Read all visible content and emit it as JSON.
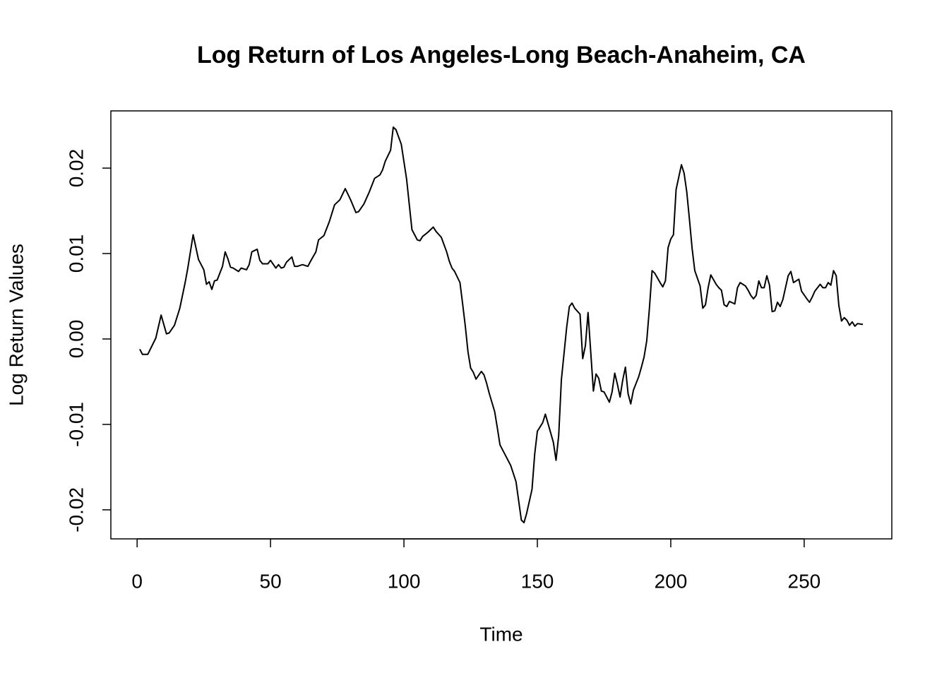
{
  "chart_data": {
    "type": "line",
    "title": "Log Return of Los Angeles-Long Beach-Anaheim, CA",
    "x_label": "Time",
    "y_label": "Log Return Values",
    "xlim": [
      -9.84,
      282.84
    ],
    "ylim": [
      -0.0234,
      0.0267
    ],
    "xticks": [
      0,
      50,
      100,
      150,
      200,
      250
    ],
    "yticks": [
      -0.02,
      -0.01,
      {
        "value": 0,
        "label": "0.00"
      },
      0.01,
      0.02
    ],
    "series": [
      {
        "color": "#000000",
        "x": [
          1,
          2,
          4,
          7,
          9,
          11,
          12,
          14,
          16,
          18,
          19,
          21,
          23,
          25,
          26,
          27,
          28,
          29,
          30,
          32,
          33,
          34,
          35,
          36,
          38,
          39,
          41,
          42,
          43,
          45,
          46,
          47,
          49,
          50,
          52,
          53,
          54,
          55,
          56,
          58,
          59,
          60,
          62,
          64,
          65,
          67,
          68,
          70,
          72,
          74,
          76,
          78,
          80,
          82,
          83,
          85,
          87,
          89,
          91,
          92,
          93,
          95,
          96,
          97,
          99,
          101,
          103,
          105,
          106,
          107,
          109,
          110,
          111,
          112,
          114,
          116,
          117,
          118,
          119,
          121,
          122,
          123,
          124,
          125,
          126,
          127,
          129,
          130,
          131,
          132,
          134,
          135,
          136,
          137,
          138,
          140,
          142,
          144,
          145,
          146,
          148,
          149,
          150,
          151,
          152,
          153,
          154,
          156,
          157,
          158,
          159,
          161,
          162,
          163,
          164,
          166,
          167,
          168,
          169,
          171,
          172,
          173,
          174,
          175,
          177,
          178,
          179,
          180,
          181,
          182,
          183,
          184,
          185,
          186,
          188,
          189,
          190,
          191,
          192,
          193,
          194,
          196,
          197,
          198,
          199,
          200,
          201,
          202,
          204,
          205,
          206,
          207,
          208,
          209,
          211,
          212,
          213,
          214,
          215,
          217,
          218,
          219,
          220,
          221,
          222,
          224,
          225,
          226,
          228,
          229,
          230,
          231,
          232,
          233,
          234,
          235,
          236,
          237,
          238,
          239,
          240,
          241,
          242,
          244,
          245,
          246,
          248,
          249,
          251,
          252,
          253,
          254,
          256,
          257,
          258,
          259,
          260,
          261,
          262,
          263,
          264,
          265,
          266,
          267,
          268,
          269,
          270,
          272
        ],
        "values": [
          -0.0012,
          -0.0018,
          -0.0018,
          0.0001,
          0.0028,
          0.0006,
          0.0007,
          0.0016,
          0.0036,
          0.0066,
          0.0083,
          0.0122,
          0.0093,
          0.0081,
          0.0064,
          0.0067,
          0.0058,
          0.0068,
          0.0069,
          0.0085,
          0.0102,
          0.0094,
          0.0084,
          0.0083,
          0.0079,
          0.0083,
          0.0081,
          0.0087,
          0.0102,
          0.0105,
          0.0092,
          0.0088,
          0.0088,
          0.0092,
          0.0083,
          0.0087,
          0.0083,
          0.0084,
          0.009,
          0.0096,
          0.0085,
          0.0085,
          0.0087,
          0.0085,
          0.0091,
          0.0102,
          0.0116,
          0.0121,
          0.0137,
          0.0157,
          0.0163,
          0.0176,
          0.0163,
          0.0148,
          0.0149,
          0.0158,
          0.0172,
          0.0188,
          0.0192,
          0.0198,
          0.0208,
          0.0221,
          0.0248,
          0.0245,
          0.0228,
          0.0187,
          0.0128,
          0.0116,
          0.0115,
          0.012,
          0.0125,
          0.0128,
          0.0131,
          0.0126,
          0.0119,
          0.0102,
          0.0091,
          0.0083,
          0.0079,
          0.0066,
          0.0041,
          0.0015,
          -0.0015,
          -0.0034,
          -0.0039,
          -0.0047,
          -0.0038,
          -0.0042,
          -0.0052,
          -0.0064,
          -0.0085,
          -0.0104,
          -0.0124,
          -0.013,
          -0.0136,
          -0.0148,
          -0.0167,
          -0.0212,
          -0.0215,
          -0.0204,
          -0.0176,
          -0.0135,
          -0.0108,
          -0.0103,
          -0.0098,
          -0.0088,
          -0.0099,
          -0.0121,
          -0.0142,
          -0.0113,
          -0.0048,
          0.0014,
          0.0038,
          0.0042,
          0.0036,
          0.0029,
          -0.0023,
          -0.0008,
          0.0031,
          -0.0061,
          -0.0041,
          -0.0046,
          -0.0061,
          -0.0062,
          -0.0074,
          -0.0062,
          -0.004,
          -0.0053,
          -0.0068,
          -0.0048,
          -0.0033,
          -0.0064,
          -0.0076,
          -0.006,
          -0.0044,
          -0.0033,
          -0.0021,
          -0.0002,
          0.0036,
          0.008,
          0.0077,
          0.0066,
          0.0061,
          0.0068,
          0.0107,
          0.0117,
          0.0122,
          0.0175,
          0.0204,
          0.0194,
          0.0172,
          0.014,
          0.0106,
          0.008,
          0.0062,
          0.0036,
          0.004,
          0.006,
          0.0075,
          0.0064,
          0.006,
          0.0057,
          0.004,
          0.0038,
          0.0044,
          0.0041,
          0.006,
          0.0066,
          0.0062,
          0.0057,
          0.0051,
          0.0047,
          0.0051,
          0.0068,
          0.006,
          0.006,
          0.0074,
          0.0063,
          0.0032,
          0.0033,
          0.0043,
          0.0038,
          0.0046,
          0.0074,
          0.0079,
          0.0066,
          0.007,
          0.0056,
          0.0047,
          0.0043,
          0.0049,
          0.0056,
          0.0064,
          0.006,
          0.006,
          0.0066,
          0.0063,
          0.008,
          0.0074,
          0.0039,
          0.0021,
          0.0025,
          0.0022,
          0.0016,
          0.002,
          0.0015,
          0.0018,
          0.0017
        ]
      }
    ]
  }
}
